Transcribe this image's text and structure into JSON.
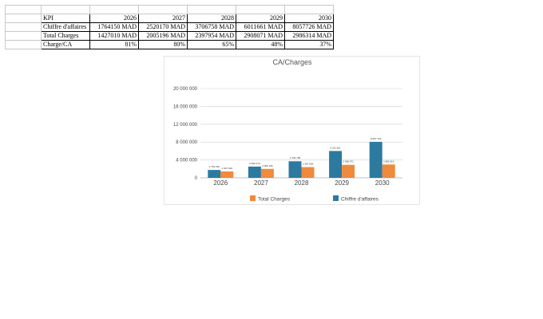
{
  "sheet": {
    "header": {
      "label": "KPI",
      "years": [
        "2026",
        "2027",
        "2028",
        "2029",
        "2030"
      ]
    },
    "rows": [
      {
        "label": "Chiffre d'affaires",
        "values": [
          "1764150 MAD",
          "2520170 MAD",
          "3706758 MAD",
          "6011661 MAD",
          "8057726 MAD"
        ]
      },
      {
        "label": "Total Charges",
        "values": [
          "1427010 MAD",
          "2005196 MAD",
          "2397954 MAD",
          "2908071 MAD",
          "2986314 MAD"
        ]
      },
      {
        "label": "Charge/CA",
        "values": [
          "81%",
          "80%",
          "65%",
          "48%",
          "37%"
        ]
      }
    ]
  },
  "chart_data": {
    "type": "bar",
    "title": "CA/Charges",
    "categories": [
      "2026",
      "2027",
      "2028",
      "2029",
      "2030"
    ],
    "series": [
      {
        "name": "Chiffre d'affaires",
        "color": "#2c7aa0",
        "values": [
          1764150,
          2520170,
          3706758,
          6011661,
          8057726
        ],
        "labels": [
          "1 764 150",
          "2 520 170",
          "3 706 758",
          "6 011 661",
          "8 057 726"
        ]
      },
      {
        "name": "Total Charges",
        "color": "#f08a3c",
        "values": [
          1427010,
          2005196,
          2397954,
          2908071,
          2986314
        ],
        "labels": [
          "1 427 010",
          "2 005 196",
          "2 397 954",
          "2 908 071",
          "2 986 314"
        ]
      }
    ],
    "ylim": [
      0,
      20000000
    ],
    "yticks": [
      "0",
      "4 000 000",
      "8 000 000",
      "12 000 000",
      "16 000 000",
      "20 000 000"
    ],
    "ytick_values": [
      0,
      4000000,
      8000000,
      12000000,
      16000000,
      20000000
    ],
    "grid": true,
    "legend": "bottom",
    "legend_order": [
      "Total Charges",
      "Chiffre d'affaires"
    ]
  }
}
